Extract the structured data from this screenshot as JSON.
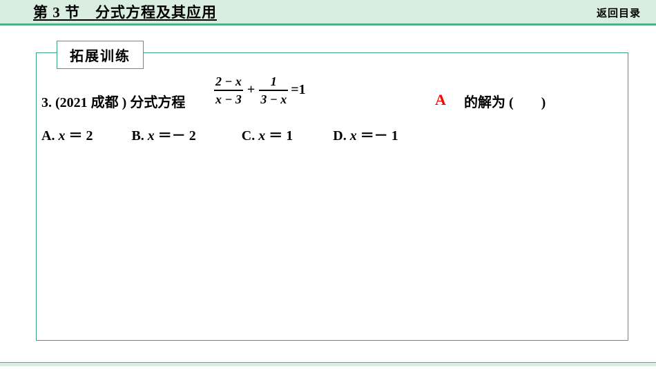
{
  "colors": {
    "header_bg": "#d9ede1",
    "accent_line": "#4fae8a",
    "box_border": "#3aa379",
    "answer": "#ff0000",
    "text": "#000000",
    "background": "#ffffff"
  },
  "typography": {
    "title_fontsize": 21,
    "body_fontsize": 20,
    "fraction_fontsize": 18,
    "answer_fontsize": 22
  },
  "header": {
    "title": "第 3 节　分式方程及其应用",
    "return_label": "返回目录"
  },
  "tab": {
    "label": "拓展训练"
  },
  "question": {
    "number": "3.",
    "source": "(2021 成都 )",
    "stem_prefix": "分式方程",
    "fraction1": {
      "numerator": "2 − x",
      "denominator": "x − 3"
    },
    "plus": "+",
    "fraction2": {
      "numerator": "1",
      "denominator": "3 − x"
    },
    "equals_rhs": "=1",
    "stem_suffix": "的解为 (　　)",
    "answer": "A"
  },
  "options": {
    "A": "A. x ＝ 2",
    "B": "B. x ＝－ 2",
    "C": "C. x ＝ 1",
    "D": "D. x ＝－ 1"
  }
}
